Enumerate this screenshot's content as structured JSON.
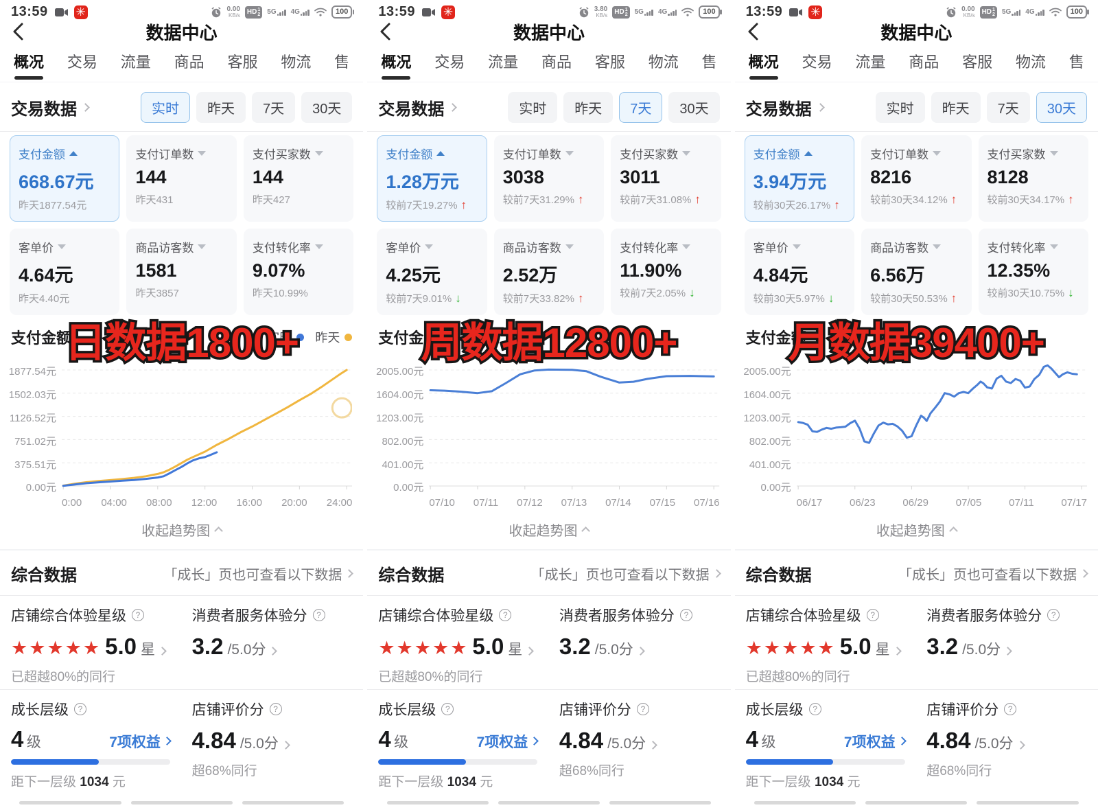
{
  "panels": [
    {
      "status": {
        "time": "13:59",
        "speed_value": "0.00",
        "speed_unit": "KB/s",
        "hd": "HD",
        "hd_sup": "1",
        "hd_sub": "2",
        "net_a": "5G",
        "net_b": "4G",
        "battery": "100"
      },
      "header": {
        "title": "数据中心"
      },
      "tabs": [
        {
          "label": "概况",
          "active": true
        },
        {
          "label": "交易"
        },
        {
          "label": "流量"
        },
        {
          "label": "商品"
        },
        {
          "label": "客服"
        },
        {
          "label": "物流"
        },
        {
          "label": "售"
        }
      ],
      "section_title": "交易数据",
      "filters": [
        {
          "label": "实时",
          "selected": true
        },
        {
          "label": "昨天"
        },
        {
          "label": "7天"
        },
        {
          "label": "30天"
        }
      ],
      "cards": [
        {
          "label": "支付金额",
          "caret": "up",
          "value": "668.67元",
          "sub": "昨天1877.54元",
          "selected": true
        },
        {
          "label": "支付订单数",
          "caret": "down",
          "value": "144",
          "sub": "昨天431"
        },
        {
          "label": "支付买家数",
          "caret": "down",
          "value": "144",
          "sub": "昨天427"
        },
        {
          "label": "客单价",
          "caret": "down",
          "value": "4.64元",
          "sub": "昨天4.40元"
        },
        {
          "label": "商品访客数",
          "caret": "down",
          "value": "1581",
          "sub": "昨天3857"
        },
        {
          "label": "支付转化率",
          "caret": "down",
          "value": "9.07%",
          "sub": "昨天10.99%"
        }
      ],
      "overlay": "日数据1800+",
      "chart_data": {
        "type": "line",
        "title": "支付金额",
        "ytop": 1877.54,
        "xmax": 24,
        "y_ticks": [
          "1877.54元",
          "1502.03元",
          "1126.52元",
          "751.02元",
          "375.51元",
          "0.00元"
        ],
        "x_ticks": [
          "0:00",
          "04:00",
          "08:00",
          "12:00",
          "16:00",
          "20:00",
          "24:00"
        ],
        "ylim": [
          0,
          1877.54
        ],
        "legend": [
          {
            "label": "实时",
            "color": "#4178d8"
          },
          {
            "label": "昨天",
            "color": "#f0b63f"
          }
        ],
        "series": [
          {
            "name": "昨天",
            "color": "#f0b63f",
            "points": [
              [
                0,
                5
              ],
              [
                1,
                38
              ],
              [
                2,
                62
              ],
              [
                3,
                80
              ],
              [
                4,
                95
              ],
              [
                5,
                112
              ],
              [
                6,
                132
              ],
              [
                7,
                158
              ],
              [
                8,
                195
              ],
              [
                8.5,
                222
              ],
              [
                9,
                265
              ],
              [
                9.5,
                315
              ],
              [
                10,
                370
              ],
              [
                10.5,
                425
              ],
              [
                11,
                470
              ],
              [
                12,
                555
              ],
              [
                13,
                665
              ],
              [
                14,
                762
              ],
              [
                15,
                868
              ],
              [
                16,
                962
              ],
              [
                17,
                1065
              ],
              [
                18,
                1170
              ],
              [
                19,
                1275
              ],
              [
                20,
                1388
              ],
              [
                21,
                1495
              ],
              [
                22,
                1620
              ],
              [
                23,
                1752
              ],
              [
                23.5,
                1818
              ],
              [
                24,
                1877
              ]
            ]
          },
          {
            "name": "实时",
            "color": "#4178d8",
            "points": [
              [
                0,
                3
              ],
              [
                1,
                25
              ],
              [
                2,
                45
              ],
              [
                3,
                60
              ],
              [
                4,
                72
              ],
              [
                5,
                85
              ],
              [
                6,
                98
              ],
              [
                7,
                115
              ],
              [
                8,
                138
              ],
              [
                8.5,
                158
              ],
              [
                9,
                205
              ],
              [
                9.5,
                258
              ],
              [
                10,
                308
              ],
              [
                10.5,
                365
              ],
              [
                11,
                415
              ],
              [
                11.5,
                448
              ],
              [
                12,
                468
              ],
              [
                12.5,
                505
              ],
              [
                13,
                545
              ]
            ]
          }
        ],
        "ring": {
          "x": 23.6,
          "y": 1265
        }
      },
      "collapse_label": "收起趋势图",
      "summary": {
        "title": "综合数据",
        "link": "「成长」页也可查看以下数据",
        "star_label": "店铺综合体验星级",
        "star_count": 5,
        "star_value": "5.0",
        "star_unit": "星",
        "star_note": "已超越80%的同行",
        "service_label": "消费者服务体验分",
        "service_value": "3.2",
        "service_suffix": "/5.0分",
        "growth_label": "成长层级",
        "growth_value": "4",
        "growth_unit": "级",
        "growth_link": "7项权益",
        "growth_progress": 55,
        "growth_note_pre": "距下一层级",
        "growth_note_num": "1034",
        "growth_note_unit": "元",
        "rating_label": "店铺评价分",
        "rating_value": "4.84",
        "rating_suffix": "/5.0分",
        "rating_note": "超68%同行"
      }
    },
    {
      "status": {
        "time": "13:59",
        "speed_value": "3.80",
        "speed_unit": "KB/s",
        "hd": "HD",
        "hd_sup": "1",
        "hd_sub": "2",
        "net_a": "5G",
        "net_b": "4G",
        "battery": "100"
      },
      "header": {
        "title": "数据中心"
      },
      "tabs": [
        {
          "label": "概况",
          "active": true
        },
        {
          "label": "交易"
        },
        {
          "label": "流量"
        },
        {
          "label": "商品"
        },
        {
          "label": "客服"
        },
        {
          "label": "物流"
        },
        {
          "label": "售"
        }
      ],
      "section_title": "交易数据",
      "filters": [
        {
          "label": "实时"
        },
        {
          "label": "昨天"
        },
        {
          "label": "7天",
          "selected": true
        },
        {
          "label": "30天"
        }
      ],
      "cards": [
        {
          "label": "支付金额",
          "caret": "up",
          "value": "1.28万元",
          "sub": "较前7天19.27%",
          "trend": "up",
          "selected": true
        },
        {
          "label": "支付订单数",
          "caret": "down",
          "value": "3038",
          "sub": "较前7天31.29%",
          "trend": "up"
        },
        {
          "label": "支付买家数",
          "caret": "down",
          "value": "3011",
          "sub": "较前7天31.08%",
          "trend": "up"
        },
        {
          "label": "客单价",
          "caret": "down",
          "value": "4.25元",
          "sub": "较前7天9.01%",
          "trend": "down"
        },
        {
          "label": "商品访客数",
          "caret": "down",
          "value": "2.52万",
          "sub": "较前7天33.82%",
          "trend": "up"
        },
        {
          "label": "支付转化率",
          "caret": "down",
          "value": "11.90%",
          "sub": "较前7天2.05%",
          "trend": "down"
        }
      ],
      "overlay": "周数据12800+",
      "chart_data": {
        "type": "line",
        "title": "支付金额",
        "ytop": 2005,
        "xmax": 6,
        "y_ticks": [
          "2005.00元",
          "1604.00元",
          "1203.00元",
          "802.00元",
          "401.00元",
          "0.00元"
        ],
        "x_ticks": [
          "07/10",
          "07/11",
          "07/12",
          "07/13",
          "07/14",
          "07/15",
          "07/16"
        ],
        "ylim": [
          0,
          2005
        ],
        "legend": [],
        "series": [
          {
            "name": "支付金额",
            "color": "#4a7fd6",
            "points": [
              [
                0,
                1655
              ],
              [
                0.3,
                1648
              ],
              [
                0.6,
                1633
              ],
              [
                1,
                1605
              ],
              [
                1.3,
                1638
              ],
              [
                1.6,
                1780
              ],
              [
                1.9,
                1930
              ],
              [
                2.2,
                1995
              ],
              [
                2.5,
                2012
              ],
              [
                3,
                2008
              ],
              [
                3.3,
                1985
              ],
              [
                3.6,
                1890
              ],
              [
                4,
                1788
              ],
              [
                4.3,
                1802
              ],
              [
                4.6,
                1852
              ],
              [
                5,
                1898
              ],
              [
                5.5,
                1903
              ],
              [
                6,
                1893
              ]
            ]
          }
        ]
      },
      "collapse_label": "收起趋势图",
      "summary": {
        "title": "综合数据",
        "link": "「成长」页也可查看以下数据",
        "star_label": "店铺综合体验星级",
        "star_count": 5,
        "star_value": "5.0",
        "star_unit": "星",
        "star_note": "已超越80%的同行",
        "service_label": "消费者服务体验分",
        "service_value": "3.2",
        "service_suffix": "/5.0分",
        "growth_label": "成长层级",
        "growth_value": "4",
        "growth_unit": "级",
        "growth_link": "7项权益",
        "growth_progress": 55,
        "growth_note_pre": "距下一层级",
        "growth_note_num": "1034",
        "growth_note_unit": "元",
        "rating_label": "店铺评价分",
        "rating_value": "4.84",
        "rating_suffix": "/5.0分",
        "rating_note": "超68%同行"
      }
    },
    {
      "status": {
        "time": "13:59",
        "speed_value": "0.00",
        "speed_unit": "KB/s",
        "hd": "HD",
        "hd_sup": "1",
        "hd_sub": "2",
        "net_a": "5G",
        "net_b": "4G",
        "battery": "100"
      },
      "header": {
        "title": "数据中心"
      },
      "tabs": [
        {
          "label": "概况",
          "active": true
        },
        {
          "label": "交易"
        },
        {
          "label": "流量"
        },
        {
          "label": "商品"
        },
        {
          "label": "客服"
        },
        {
          "label": "物流"
        },
        {
          "label": "售"
        }
      ],
      "section_title": "交易数据",
      "filters": [
        {
          "label": "实时"
        },
        {
          "label": "昨天"
        },
        {
          "label": "7天"
        },
        {
          "label": "30天",
          "selected": true
        }
      ],
      "cards": [
        {
          "label": "支付金额",
          "caret": "up",
          "value": "3.94万元",
          "sub": "较前30天26.17%",
          "trend": "up",
          "selected": true
        },
        {
          "label": "支付订单数",
          "caret": "down",
          "value": "8216",
          "sub": "较前30天34.12%",
          "trend": "up"
        },
        {
          "label": "支付买家数",
          "caret": "down",
          "value": "8128",
          "sub": "较前30天34.17%",
          "trend": "up"
        },
        {
          "label": "客单价",
          "caret": "down",
          "value": "4.84元",
          "sub": "较前30天5.97%",
          "trend": "down"
        },
        {
          "label": "商品访客数",
          "caret": "down",
          "value": "6.56万",
          "sub": "较前30天50.53%",
          "trend": "up"
        },
        {
          "label": "支付转化率",
          "caret": "down",
          "value": "12.35%",
          "sub": "较前30天10.75%",
          "trend": "down"
        }
      ],
      "overlay": "月数据39400+",
      "chart_data": {
        "type": "line",
        "title": "支付金额",
        "ytop": 2005,
        "xmax": 30,
        "y_ticks": [
          "2005.00元",
          "1604.00元",
          "1203.00元",
          "802.00元",
          "401.00元",
          "0.00元"
        ],
        "x_ticks": [
          "06/17",
          "06/23",
          "06/29",
          "07/05",
          "07/11",
          "07/17"
        ],
        "ylim": [
          0,
          2005
        ],
        "legend": [],
        "series": [
          {
            "name": "支付金额",
            "color": "#4a7fd6",
            "points": [
              [
                0,
                1105
              ],
              [
                0.5,
                1090
              ],
              [
                1,
                1060
              ],
              [
                1.5,
                945
              ],
              [
                2,
                935
              ],
              [
                2.5,
                975
              ],
              [
                3,
                1005
              ],
              [
                3.5,
                990
              ],
              [
                4,
                1010
              ],
              [
                4.5,
                1015
              ],
              [
                5,
                1025
              ],
              [
                5.5,
                1085
              ],
              [
                6,
                1130
              ],
              [
                6.5,
                990
              ],
              [
                7,
                770
              ],
              [
                7.5,
                745
              ],
              [
                8,
                905
              ],
              [
                8.5,
                1045
              ],
              [
                9,
                1095
              ],
              [
                9.5,
                1065
              ],
              [
                10,
                1075
              ],
              [
                10.5,
                1030
              ],
              [
                11,
                955
              ],
              [
                11.5,
                835
              ],
              [
                12,
                860
              ],
              [
                12.5,
                1050
              ],
              [
                13,
                1215
              ],
              [
                13.3,
                1180
              ],
              [
                13.6,
                1125
              ],
              [
                14,
                1255
              ],
              [
                14.5,
                1355
              ],
              [
                15,
                1460
              ],
              [
                15.5,
                1605
              ],
              [
                16,
                1585
              ],
              [
                16.5,
                1545
              ],
              [
                17,
                1605
              ],
              [
                17.5,
                1625
              ],
              [
                18,
                1605
              ],
              [
                18.5,
                1685
              ],
              [
                19,
                1755
              ],
              [
                19.3,
                1805
              ],
              [
                19.6,
                1775
              ],
              [
                20,
                1705
              ],
              [
                20.5,
                1685
              ],
              [
                21,
                1855
              ],
              [
                21.5,
                1905
              ],
              [
                22,
                1805
              ],
              [
                22.5,
                1780
              ],
              [
                23,
                1850
              ],
              [
                23.5,
                1820
              ],
              [
                24,
                1700
              ],
              [
                24.5,
                1720
              ],
              [
                25,
                1850
              ],
              [
                25.5,
                1920
              ],
              [
                26,
                2060
              ],
              [
                26.4,
                2085
              ],
              [
                26.8,
                2030
              ],
              [
                27.2,
                1955
              ],
              [
                27.6,
                1880
              ],
              [
                28,
                1930
              ],
              [
                28.5,
                1965
              ],
              [
                29,
                1940
              ],
              [
                29.5,
                1930
              ]
            ]
          }
        ]
      },
      "collapse_label": "收起趋势图",
      "summary": {
        "title": "综合数据",
        "link": "「成长」页也可查看以下数据",
        "star_label": "店铺综合体验星级",
        "star_count": 5,
        "star_value": "5.0",
        "star_unit": "星",
        "star_note": "已超越80%的同行",
        "service_label": "消费者服务体验分",
        "service_value": "3.2",
        "service_suffix": "/5.0分",
        "growth_label": "成长层级",
        "growth_value": "4",
        "growth_unit": "级",
        "growth_link": "7项权益",
        "growth_progress": 55,
        "growth_note_pre": "距下一层级",
        "growth_note_num": "1034",
        "growth_note_unit": "元",
        "rating_label": "店铺评价分",
        "rating_value": "4.84",
        "rating_suffix": "/5.0分",
        "rating_note": "超68%同行"
      }
    }
  ]
}
